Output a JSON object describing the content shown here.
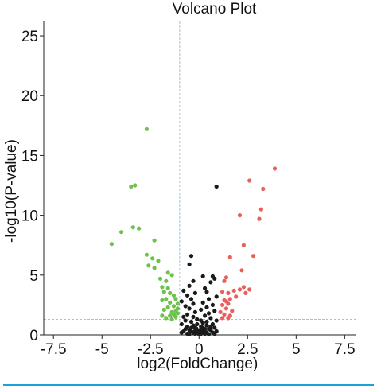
{
  "chart_data": {
    "type": "scatter",
    "title": "Volcano Plot",
    "xlabel": "log2(FoldChange)",
    "ylabel": "-log10(P-value)",
    "xlim": [
      -8,
      8.1
    ],
    "ylim": [
      0,
      26.2
    ],
    "xticks": [
      -7.5,
      -5,
      -2.5,
      0,
      2.5,
      5,
      7.5
    ],
    "xtick_labels": [
      "-7.5",
      "-5",
      "-2.5",
      "0",
      "2.5",
      "5",
      "7.5"
    ],
    "yticks": [
      0,
      5,
      10,
      15,
      20,
      25
    ],
    "ytick_labels": [
      "0",
      "5",
      "10",
      "15",
      "20",
      "25"
    ],
    "grid": false,
    "thresholds": {
      "vline_x": -1,
      "hline_y": 1.3
    },
    "colors": {
      "down": "#6cc24a",
      "up": "#e8605a",
      "ns": "#1a1a1a",
      "threshold": "#9ec3d8",
      "axis": "#222222",
      "rule": "#1aa3d6"
    },
    "series": [
      {
        "color": "down",
        "points": [
          [
            -2.7,
            17.2
          ],
          [
            -3.5,
            12.4
          ],
          [
            -3.3,
            12.5
          ],
          [
            -3.4,
            9.0
          ],
          [
            -3.1,
            8.9
          ],
          [
            -4.0,
            8.6
          ],
          [
            -4.5,
            7.6
          ],
          [
            -2.3,
            7.9
          ],
          [
            -2.7,
            6.7
          ],
          [
            -2.4,
            6.4
          ],
          [
            -2.1,
            6.2
          ],
          [
            -2.6,
            5.8
          ],
          [
            -2.3,
            5.6
          ],
          [
            -1.6,
            5.2
          ],
          [
            -1.4,
            5.0
          ],
          [
            -2.0,
            4.7
          ],
          [
            -1.7,
            4.5
          ],
          [
            -1.9,
            4.0
          ],
          [
            -1.6,
            3.9
          ],
          [
            -1.8,
            3.6
          ],
          [
            -1.5,
            3.5
          ],
          [
            -1.3,
            3.3
          ],
          [
            -1.7,
            3.0
          ],
          [
            -1.9,
            2.9
          ],
          [
            -1.2,
            3.0
          ],
          [
            -1.5,
            2.7
          ],
          [
            -1.1,
            2.6
          ],
          [
            -1.3,
            2.4
          ],
          [
            -1.6,
            2.3
          ],
          [
            -1.8,
            2.1
          ],
          [
            -1.2,
            2.0
          ],
          [
            -1.4,
            1.9
          ],
          [
            -1.1,
            1.8
          ],
          [
            -1.3,
            1.7
          ],
          [
            -1.5,
            1.6
          ],
          [
            -1.2,
            1.5
          ],
          [
            -1.7,
            1.4
          ],
          [
            -1.4,
            1.3
          ],
          [
            -1.1,
            2.2
          ],
          [
            -1.9,
            1.6
          ]
        ]
      },
      {
        "color": "up",
        "points": [
          [
            3.9,
            13.9
          ],
          [
            2.6,
            12.9
          ],
          [
            3.3,
            12.2
          ],
          [
            3.2,
            10.5
          ],
          [
            2.1,
            10.0
          ],
          [
            3.1,
            9.7
          ],
          [
            2.3,
            7.5
          ],
          [
            2.8,
            6.6
          ],
          [
            1.6,
            6.5
          ],
          [
            2.2,
            5.4
          ],
          [
            1.4,
            4.8
          ],
          [
            1.3,
            4.5
          ],
          [
            2.3,
            4.0
          ],
          [
            2.1,
            3.8
          ],
          [
            1.8,
            3.7
          ],
          [
            2.6,
            3.8
          ],
          [
            1.5,
            3.5
          ],
          [
            2.4,
            3.5
          ],
          [
            1.2,
            3.6
          ],
          [
            1.9,
            3.2
          ],
          [
            1.6,
            3.0
          ],
          [
            1.3,
            2.9
          ],
          [
            1.5,
            2.6
          ],
          [
            1.2,
            2.5
          ],
          [
            1.4,
            2.2
          ],
          [
            1.7,
            2.0
          ],
          [
            1.1,
            1.9
          ],
          [
            1.3,
            1.7
          ],
          [
            1.6,
            1.6
          ],
          [
            1.2,
            1.4
          ],
          [
            1.5,
            1.4
          ],
          [
            1.4,
            2.8
          ]
        ]
      },
      {
        "color": "ns",
        "points": [
          [
            0.9,
            12.4
          ],
          [
            -0.4,
            6.6
          ],
          [
            -0.5,
            5.9
          ],
          [
            0.2,
            4.9
          ],
          [
            0.7,
            4.9
          ],
          [
            0.8,
            4.7
          ],
          [
            -0.3,
            4.5
          ],
          [
            0.6,
            4.4
          ],
          [
            -0.5,
            4.1
          ],
          [
            0.4,
            3.6
          ],
          [
            -0.2,
            3.5
          ],
          [
            0.3,
            3.9
          ],
          [
            -0.8,
            3.7
          ],
          [
            -0.6,
            3.3
          ],
          [
            0.5,
            3.0
          ],
          [
            -0.4,
            3.0
          ],
          [
            0.9,
            3.2
          ],
          [
            -0.9,
            2.8
          ],
          [
            0.2,
            2.7
          ],
          [
            -0.3,
            2.6
          ],
          [
            0.7,
            2.5
          ],
          [
            -0.7,
            2.4
          ],
          [
            0.4,
            2.3
          ],
          [
            -0.5,
            2.2
          ],
          [
            0.1,
            2.1
          ],
          [
            0.8,
            2.0
          ],
          [
            -0.2,
            1.9
          ],
          [
            0.5,
            1.8
          ],
          [
            -0.6,
            1.7
          ],
          [
            0.3,
            1.6
          ],
          [
            -0.8,
            1.5
          ],
          [
            0.6,
            1.4
          ],
          [
            -0.1,
            1.3
          ],
          [
            0.9,
            1.2
          ],
          [
            -0.4,
            1.1
          ],
          [
            0.2,
            1.0
          ],
          [
            -0.9,
            0.9
          ],
          [
            0.7,
            0.9
          ],
          [
            -0.3,
            0.8
          ],
          [
            0.4,
            0.8
          ],
          [
            -0.6,
            0.7
          ],
          [
            0.1,
            0.7
          ],
          [
            0.8,
            0.6
          ],
          [
            -0.2,
            0.6
          ],
          [
            0.5,
            0.5
          ],
          [
            -0.7,
            0.5
          ],
          [
            0.3,
            0.5
          ],
          [
            -0.5,
            0.4
          ],
          [
            0.0,
            0.4
          ],
          [
            0.6,
            0.4
          ],
          [
            -0.4,
            0.3
          ],
          [
            0.2,
            0.3
          ],
          [
            -0.8,
            0.3
          ],
          [
            0.9,
            0.3
          ],
          [
            -0.1,
            0.2
          ],
          [
            0.4,
            0.2
          ],
          [
            -0.3,
            0.2
          ],
          [
            0.7,
            0.2
          ],
          [
            0.1,
            0.1
          ],
          [
            -0.6,
            0.1
          ],
          [
            0.3,
            0.1
          ],
          [
            -0.2,
            0.1
          ],
          [
            0.0,
            0.05
          ],
          [
            0.5,
            0.05
          ],
          [
            -0.5,
            0.05
          ],
          [
            0.8,
            0.1
          ],
          [
            -0.9,
            0.2
          ],
          [
            0.2,
            0.6
          ],
          [
            -0.1,
            0.9
          ],
          [
            0.1,
            1.2
          ],
          [
            -0.3,
            1.5
          ],
          [
            0.4,
            1.1
          ],
          [
            -0.7,
            1.2
          ],
          [
            0.6,
            0.7
          ],
          [
            -0.4,
            0.6
          ],
          [
            0.3,
            0.3
          ],
          [
            -0.2,
            0.35
          ],
          [
            0.15,
            0.45
          ],
          [
            -0.15,
            0.55
          ],
          [
            0.05,
            0.25
          ]
        ]
      }
    ]
  }
}
